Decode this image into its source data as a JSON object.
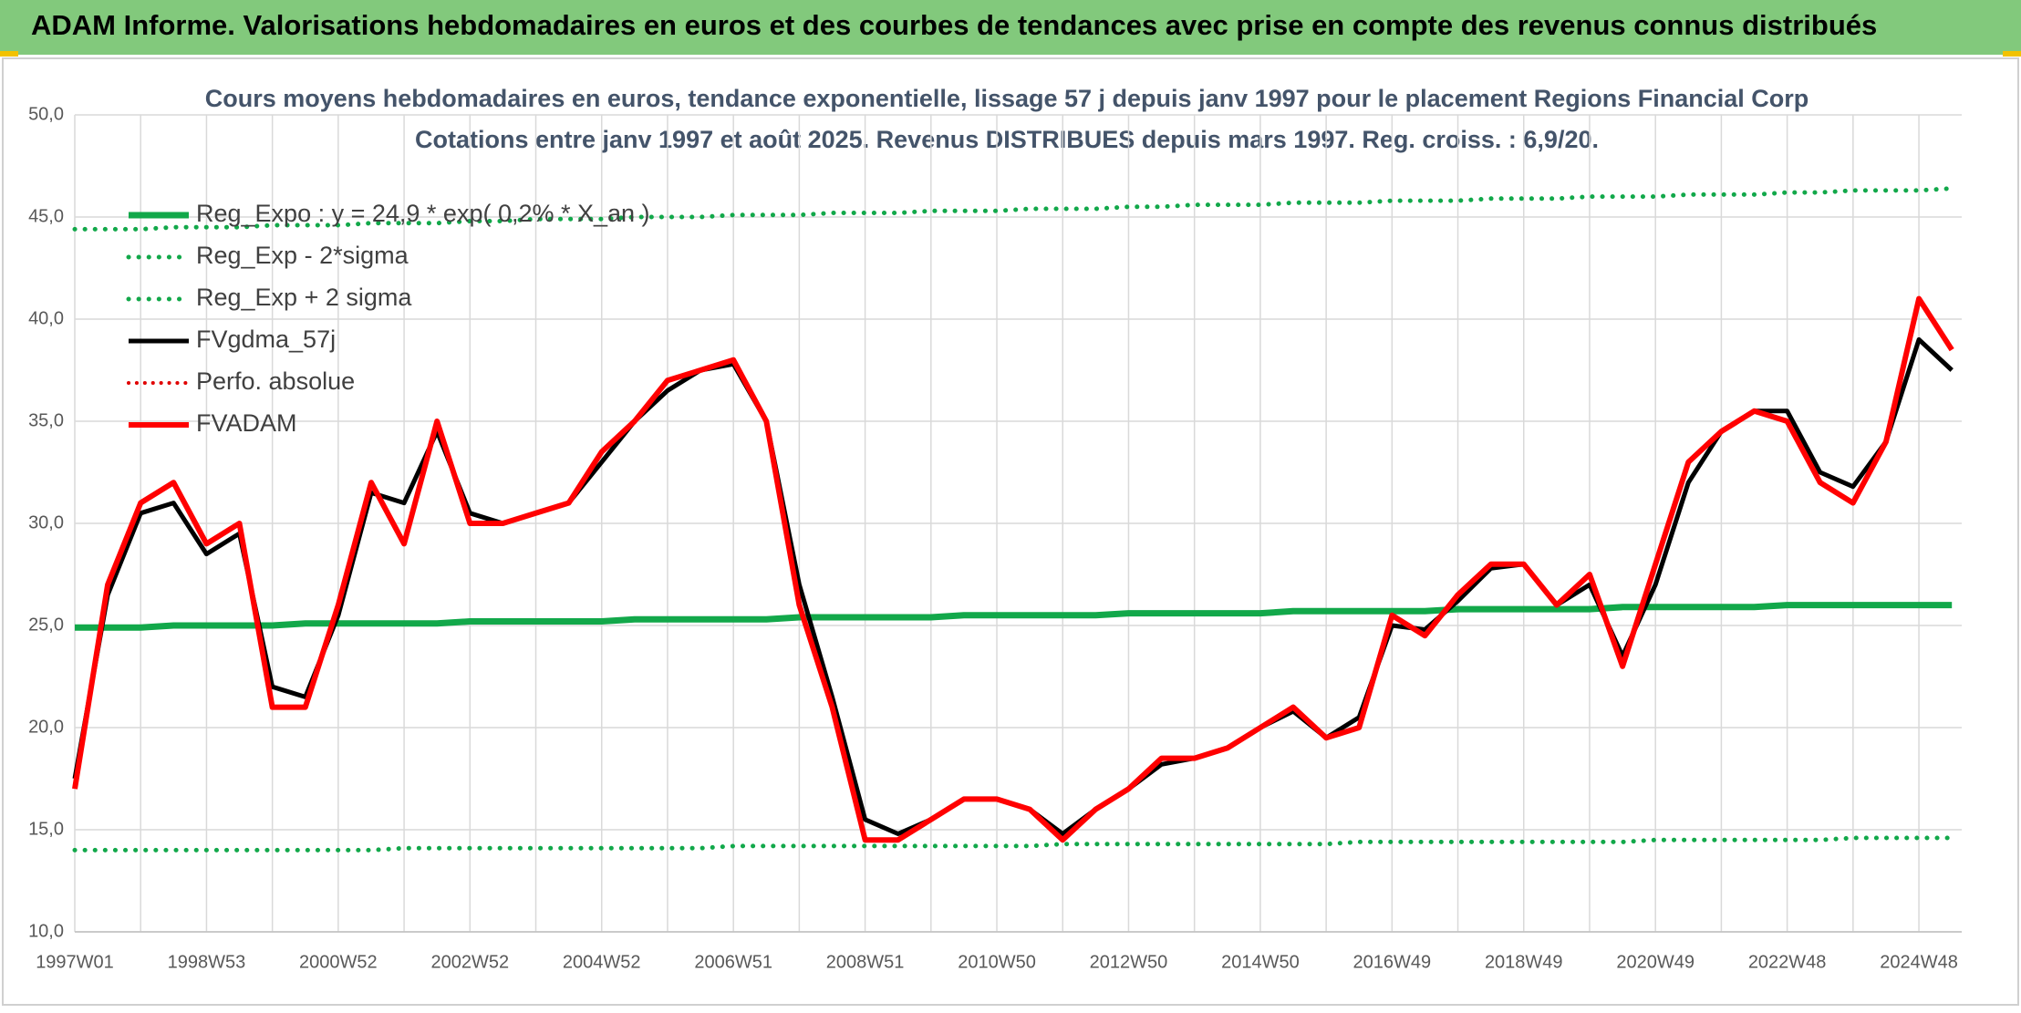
{
  "banner": "ADAM Informe. Valorisations hebdomadaires en euros et des courbes de tendances avec prise en compte des revenus connus distribués",
  "chart_data": {
    "type": "line",
    "title": "Cours moyens hebdomadaires en euros, tendance exponentielle, lissage 57 j depuis janv 1997 pour le placement Regions Financial Corp",
    "subtitle": "Cotations entre janv 1997 et août 2025. Revenus DISTRIBUES depuis mars 1997. Reg. croiss. : 6,9/20.",
    "categories": [
      "1997W01",
      null,
      null,
      null,
      "1998W53",
      null,
      null,
      null,
      "2000W52",
      null,
      null,
      null,
      "2002W52",
      null,
      null,
      null,
      "2004W52",
      null,
      null,
      null,
      "2006W51",
      null,
      null,
      null,
      "2008W51",
      null,
      null,
      null,
      "2010W50",
      null,
      null,
      null,
      "2012W50",
      null,
      null,
      null,
      "2014W50",
      null,
      null,
      null,
      "2016W49",
      null,
      null,
      null,
      "2018W49",
      null,
      null,
      null,
      "2020W49",
      null,
      null,
      null,
      "2022W48",
      null,
      null,
      null,
      "2024W48",
      null
    ],
    "ylim": [
      10,
      50
    ],
    "yticks": [
      {
        "value": 10,
        "label": "10,0"
      },
      {
        "value": 15,
        "label": "15,0"
      },
      {
        "value": 20,
        "label": "20,0"
      },
      {
        "value": 25,
        "label": "25,0"
      },
      {
        "value": 30,
        "label": "30,0"
      },
      {
        "value": 35,
        "label": "35,0"
      },
      {
        "value": 40,
        "label": "40,0"
      },
      {
        "value": 45,
        "label": "45,0"
      },
      {
        "value": 50,
        "label": "50,0"
      }
    ],
    "grid": true,
    "legend": "upper left",
    "series": [
      {
        "name": "Reg_Expo : y = 24,9 * exp( 0,2% * X_an )",
        "color": "#12a84a",
        "style": "solid",
        "width": 7,
        "values": [
          24.9,
          24.9,
          24.9,
          25.0,
          25.0,
          25.0,
          25.0,
          25.1,
          25.1,
          25.1,
          25.1,
          25.1,
          25.2,
          25.2,
          25.2,
          25.2,
          25.2,
          25.3,
          25.3,
          25.3,
          25.3,
          25.3,
          25.4,
          25.4,
          25.4,
          25.4,
          25.4,
          25.5,
          25.5,
          25.5,
          25.5,
          25.5,
          25.6,
          25.6,
          25.6,
          25.6,
          25.6,
          25.7,
          25.7,
          25.7,
          25.7,
          25.7,
          25.8,
          25.8,
          25.8,
          25.8,
          25.8,
          25.9,
          25.9,
          25.9,
          25.9,
          25.9,
          26.0,
          26.0,
          26.0,
          26.0,
          26.0,
          26.0
        ]
      },
      {
        "name": "Reg_Exp - 2*sigma",
        "color": "#12a84a",
        "style": "dotted",
        "width": 5,
        "values": [
          14.0,
          14.0,
          14.0,
          14.0,
          14.0,
          14.0,
          14.0,
          14.0,
          14.0,
          14.0,
          14.1,
          14.1,
          14.1,
          14.1,
          14.1,
          14.1,
          14.1,
          14.1,
          14.1,
          14.1,
          14.2,
          14.2,
          14.2,
          14.2,
          14.2,
          14.2,
          14.2,
          14.2,
          14.2,
          14.2,
          14.3,
          14.3,
          14.3,
          14.3,
          14.3,
          14.3,
          14.3,
          14.3,
          14.3,
          14.4,
          14.4,
          14.4,
          14.4,
          14.4,
          14.4,
          14.4,
          14.4,
          14.4,
          14.5,
          14.5,
          14.5,
          14.5,
          14.5,
          14.5,
          14.6,
          14.6,
          14.6,
          14.6
        ]
      },
      {
        "name": "Reg_Exp + 2 sigma",
        "color": "#12a84a",
        "style": "dotted",
        "width": 5,
        "values": [
          44.4,
          44.4,
          44.4,
          44.5,
          44.5,
          44.5,
          44.6,
          44.6,
          44.6,
          44.7,
          44.7,
          44.7,
          44.8,
          44.8,
          44.9,
          44.9,
          44.9,
          45.0,
          45.0,
          45.0,
          45.1,
          45.1,
          45.1,
          45.2,
          45.2,
          45.2,
          45.3,
          45.3,
          45.3,
          45.4,
          45.4,
          45.4,
          45.5,
          45.5,
          45.6,
          45.6,
          45.6,
          45.7,
          45.7,
          45.7,
          45.8,
          45.8,
          45.8,
          45.9,
          45.9,
          45.9,
          46.0,
          46.0,
          46.0,
          46.1,
          46.1,
          46.1,
          46.2,
          46.2,
          46.3,
          46.3,
          46.3,
          46.4
        ]
      },
      {
        "name": "FVgdma_57j",
        "color": "#000000",
        "style": "solid",
        "width": 5,
        "values": [
          17.5,
          26.5,
          30.5,
          31,
          28.5,
          29.5,
          22,
          21.5,
          25.5,
          31.5,
          31,
          34.5,
          30.5,
          30,
          30.5,
          31,
          33,
          35,
          36.5,
          37.5,
          37.8,
          35,
          27,
          21.5,
          15.5,
          14.8,
          15.5,
          16.5,
          16.5,
          16,
          14.8,
          16,
          17,
          18.2,
          18.5,
          19,
          20,
          20.8,
          19.5,
          20.5,
          25,
          24.8,
          26.2,
          27.8,
          28,
          26,
          27,
          23.5,
          27,
          32,
          34.5,
          35.5,
          35.5,
          32.5,
          31.8,
          34,
          39,
          37.5
        ]
      },
      {
        "name": "Perfo. absolue",
        "color": "#e00000",
        "style": "dotted",
        "width": 4,
        "values": [
          null,
          null,
          null,
          null,
          null,
          null,
          null,
          null,
          null,
          null,
          null,
          null,
          null,
          null,
          null,
          null,
          null,
          null,
          null,
          null,
          null,
          null,
          null,
          null,
          null,
          null,
          null,
          null,
          null,
          null,
          null,
          null,
          null,
          null,
          null,
          null,
          null,
          null,
          null,
          null,
          null,
          null,
          null,
          null,
          null,
          null,
          null,
          null,
          null,
          null,
          null,
          null,
          null,
          null,
          null,
          null,
          null,
          null
        ]
      },
      {
        "name": "FVADAM",
        "color": "#ff0000",
        "style": "solid",
        "width": 6,
        "values": [
          17,
          27,
          31,
          32,
          29,
          30,
          21,
          21,
          26,
          32,
          29,
          35,
          30,
          30,
          30.5,
          31,
          33.5,
          35,
          37,
          37.5,
          38,
          35,
          26,
          21,
          14.5,
          14.5,
          15.5,
          16.5,
          16.5,
          16,
          14.5,
          16,
          17,
          18.5,
          18.5,
          19,
          20,
          21,
          19.5,
          20,
          25.5,
          24.5,
          26.5,
          28,
          28,
          26,
          27.5,
          23,
          28,
          33,
          34.5,
          35.5,
          35,
          32,
          31,
          34,
          41,
          38.5
        ]
      }
    ]
  }
}
